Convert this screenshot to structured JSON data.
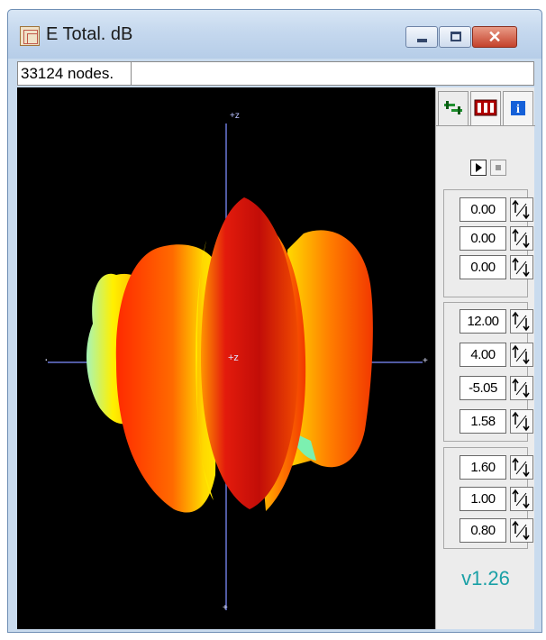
{
  "window": {
    "title": "E Total. dB",
    "icon": "app-cube-icon",
    "controls": {
      "minimize": "minimize-icon",
      "maximize": "maximize-icon",
      "close": "✕"
    }
  },
  "status": {
    "nodes": "33124 nodes."
  },
  "viewport": {
    "axis_labels": {
      "z_top": "+z",
      "center": "+z",
      "y_right": "+",
      "x_left": "·",
      "bottom": "+"
    },
    "colors": {
      "background": "#000000",
      "axis": "#6b78d8",
      "hot": "#e8170b",
      "warm": "#ffe000",
      "cool": "#7cf0b0"
    }
  },
  "panel": {
    "tabs": [
      {
        "name": "controls-tab-icon",
        "active": true
      },
      {
        "name": "colorbars-tab-icon",
        "active": false
      },
      {
        "name": "info-tab-icon",
        "active": false
      }
    ],
    "rotation": [
      "0.00",
      "0.00",
      "0.00"
    ],
    "view": [
      "12.00",
      "4.00",
      "-5.05",
      "1.58"
    ],
    "scale": [
      "1.60",
      "1.00",
      "0.80"
    ],
    "version": "v1.26"
  }
}
